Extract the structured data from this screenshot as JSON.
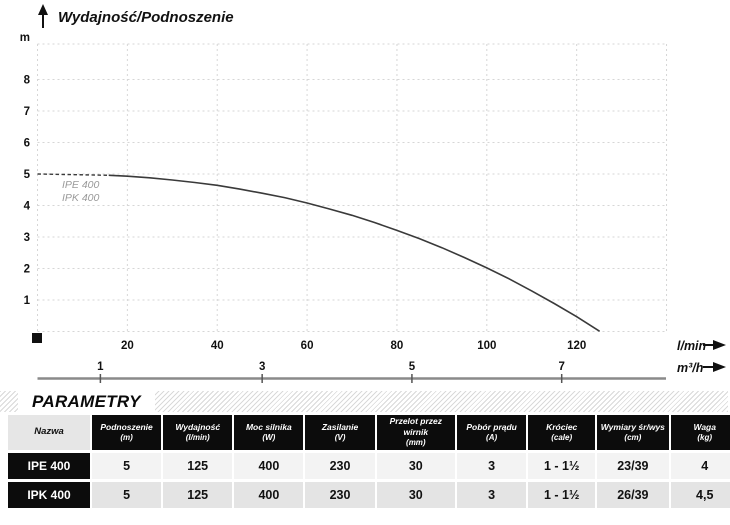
{
  "chart_data": {
    "type": "line",
    "title": "Wydajność/Podnoszenie",
    "y_axis_unit": "m",
    "x_axis_unit": "l/min",
    "x2_axis_unit": "m³/h",
    "x_ticks": [
      20,
      40,
      60,
      80,
      100,
      120
    ],
    "x2_ticks": [
      1,
      3,
      5,
      7
    ],
    "y_ticks": [
      1,
      2,
      3,
      4,
      5,
      6,
      7,
      8
    ],
    "xlim": [
      0,
      140
    ],
    "ylim": [
      0,
      9
    ],
    "grid": "dashed",
    "legend_position": "on-curve",
    "series": [
      {
        "name": "IPE 400 / IPK 400",
        "labels": [
          "IPE 400",
          "IPK 400"
        ],
        "x_unit": "l/min",
        "y_unit": "m",
        "dashed_lead_in": [
          [
            0,
            5.0
          ],
          [
            16,
            4.96
          ]
        ],
        "points": [
          [
            16,
            4.96
          ],
          [
            20,
            4.93
          ],
          [
            25,
            4.88
          ],
          [
            30,
            4.81
          ],
          [
            35,
            4.73
          ],
          [
            40,
            4.64
          ],
          [
            45,
            4.52
          ],
          [
            50,
            4.39
          ],
          [
            55,
            4.25
          ],
          [
            60,
            4.08
          ],
          [
            65,
            3.89
          ],
          [
            70,
            3.69
          ],
          [
            75,
            3.46
          ],
          [
            80,
            3.21
          ],
          [
            85,
            2.95
          ],
          [
            90,
            2.66
          ],
          [
            95,
            2.35
          ],
          [
            100,
            2.02
          ],
          [
            105,
            1.67
          ],
          [
            110,
            1.29
          ],
          [
            115,
            0.89
          ],
          [
            120,
            0.47
          ],
          [
            125,
            0.02
          ]
        ]
      }
    ]
  },
  "colors": {
    "curve": "#3a3a3a",
    "grid": "#d6d6d6",
    "x2_axis_line": "#8a8a8a",
    "table_header_bg": "#0c0c0c",
    "row_light": "#f3f3f3",
    "row_dark": "#e4e4e4"
  },
  "table": {
    "section_title": "PARAMETRY",
    "columns": [
      {
        "label": "Nazwa",
        "unit": ""
      },
      {
        "label": "Podnoszenie",
        "unit": "(m)"
      },
      {
        "label": "Wydajność",
        "unit": "(l/min)"
      },
      {
        "label": "Moc silnika",
        "unit": "(W)"
      },
      {
        "label": "Zasilanie",
        "unit": "(V)"
      },
      {
        "label": "Przelot przez wirnik",
        "unit": "(mm)"
      },
      {
        "label": "Pobór prądu",
        "unit": "(A)"
      },
      {
        "label": "Króciec",
        "unit": "(cale)"
      },
      {
        "label": "Wymiary śr/wys",
        "unit": "(cm)"
      },
      {
        "label": "Waga",
        "unit": "(kg)"
      }
    ],
    "rows": [
      {
        "name": "IPE 400",
        "values": [
          "5",
          "125",
          "400",
          "230",
          "30",
          "3",
          "1 - 1½",
          "23/39",
          "4"
        ]
      },
      {
        "name": "IPK 400",
        "values": [
          "5",
          "125",
          "400",
          "230",
          "30",
          "3",
          "1 - 1½",
          "26/39",
          "4,5"
        ]
      }
    ]
  }
}
